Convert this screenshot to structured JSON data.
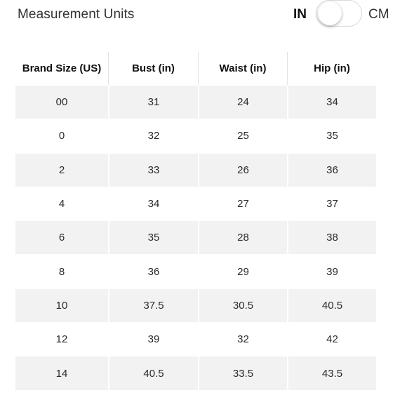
{
  "header": {
    "title": "Measurement Units",
    "unit_left": "IN",
    "unit_right": "CM",
    "toggle_state": "IN"
  },
  "table": {
    "columns": [
      "Brand Size (US)",
      "Bust (in)",
      "Waist (in)",
      "Hip (in)"
    ],
    "rows": [
      [
        "00",
        "31",
        "24",
        "34"
      ],
      [
        "0",
        "32",
        "25",
        "35"
      ],
      [
        "2",
        "33",
        "26",
        "36"
      ],
      [
        "4",
        "34",
        "27",
        "37"
      ],
      [
        "6",
        "35",
        "28",
        "38"
      ],
      [
        "8",
        "36",
        "29",
        "39"
      ],
      [
        "10",
        "37.5",
        "30.5",
        "40.5"
      ],
      [
        "12",
        "39",
        "32",
        "42"
      ],
      [
        "14",
        "40.5",
        "33.5",
        "43.5"
      ]
    ]
  },
  "colors": {
    "row_shade": "#f2f2f2",
    "text": "#1a1a1a"
  }
}
